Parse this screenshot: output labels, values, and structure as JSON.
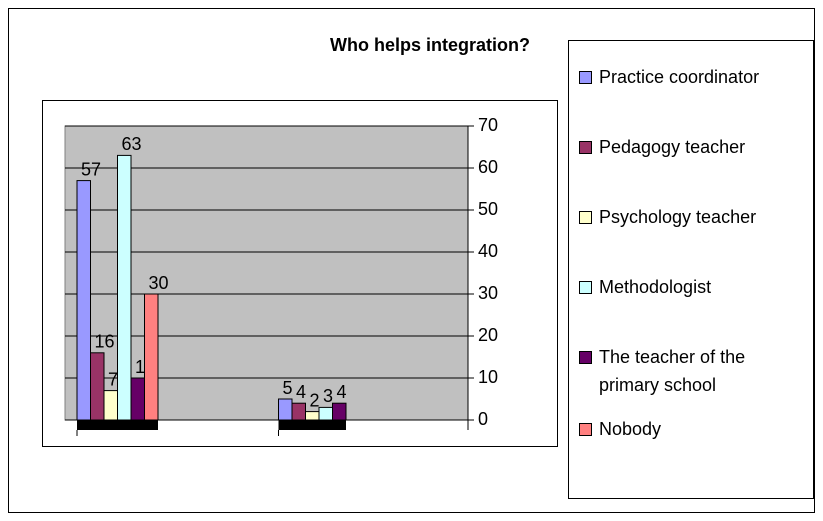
{
  "chart_data": {
    "type": "bar",
    "title": "Who helps integration?",
    "categories": [
      null,
      null
    ],
    "series": [
      {
        "name": "Practice coordinator",
        "color": "#9999ff",
        "values": [
          57,
          5
        ]
      },
      {
        "name": "Pedagogy teacher",
        "color": "#993366",
        "values": [
          16,
          4
        ]
      },
      {
        "name": "Psychology teacher",
        "color": "#ffffcc",
        "values": [
          7,
          2
        ]
      },
      {
        "name": "Methodologist",
        "color": "#ccffff",
        "values": [
          63,
          3
        ]
      },
      {
        "name": "The teacher of the primary school",
        "color": "#660066",
        "values": [
          10,
          4
        ]
      },
      {
        "name": "Nobody",
        "color": "#ff8080",
        "values": [
          30,
          null
        ]
      }
    ],
    "ylim": [
      0,
      70
    ],
    "yticks": [
      0,
      10,
      20,
      30,
      40,
      50,
      60,
      70
    ],
    "grid": true,
    "legend": "right"
  }
}
